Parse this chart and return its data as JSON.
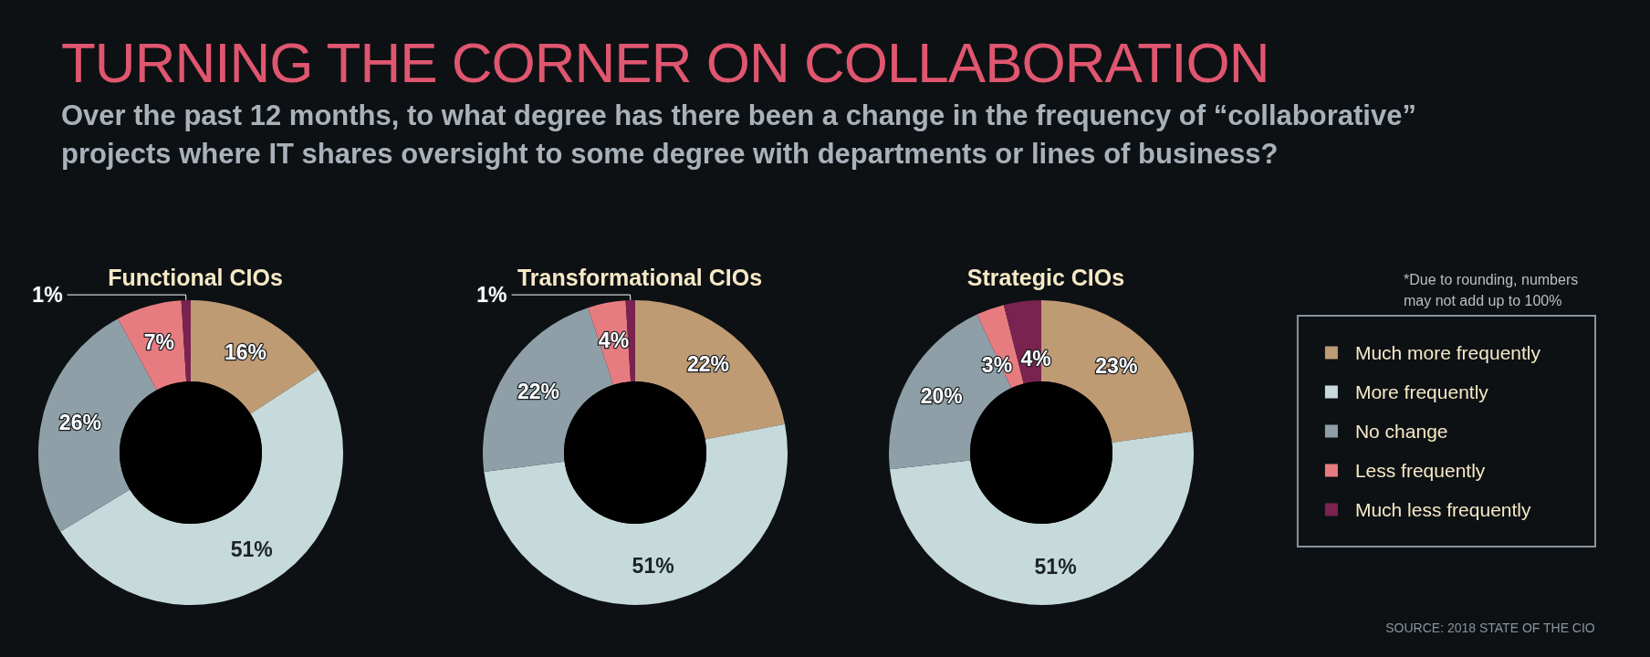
{
  "chart_data": [
    {
      "type": "other",
      "title": "TURNING THE CORNER ON COLLABORATION",
      "subtitle": "Over the past 12 months, to what degree has there been a change in the frequency of “collaborative” projects where IT shares oversight to some degree with departments or lines of business?"
    },
    {
      "type": "donut",
      "title": "Functional CIOs",
      "categories": [
        null,
        null,
        null,
        null,
        null
      ],
      "values": [
        16,
        51,
        26,
        7,
        1
      ],
      "value_labels": [
        "16%",
        "51%",
        "26%",
        "7%",
        "1%"
      ],
      "colors": [
        "#bf9b74",
        "#c6dadb",
        "#8e9fa8",
        "#e77c80",
        "#7a2350"
      ],
      "legend": false
    },
    {
      "type": "donut",
      "title": "Transformational CIOs",
      "categories": [
        null,
        null,
        null,
        null,
        null
      ],
      "values": [
        22,
        51,
        22,
        4,
        1
      ],
      "value_labels": [
        "22%",
        "51%",
        "22%",
        "4%",
        "1%"
      ],
      "colors": [
        "#bf9b74",
        "#c6dadb",
        "#8e9fa8",
        "#e77c80",
        "#7a2350"
      ],
      "legend": false
    },
    {
      "type": "donut",
      "title": "Strategic CIOs",
      "categories": [
        "Much more frequently",
        "More frequently",
        "No change",
        "Less frequently",
        "Much less frequently"
      ],
      "values": [
        23,
        51,
        20,
        3,
        4
      ],
      "value_labels": [
        "23%",
        "51%",
        "20%",
        "3%",
        "4%"
      ],
      "colors": [
        "#bf9b74",
        "#c6dadb",
        "#8e9fa8",
        "#e77c80",
        "#7a2350"
      ],
      "legend": "right",
      "annotations": [
        "*Due to rounding, numbers may not add up to 100%",
        "SOURCE: 2018 STATE OF THE CIO"
      ]
    }
  ]
}
